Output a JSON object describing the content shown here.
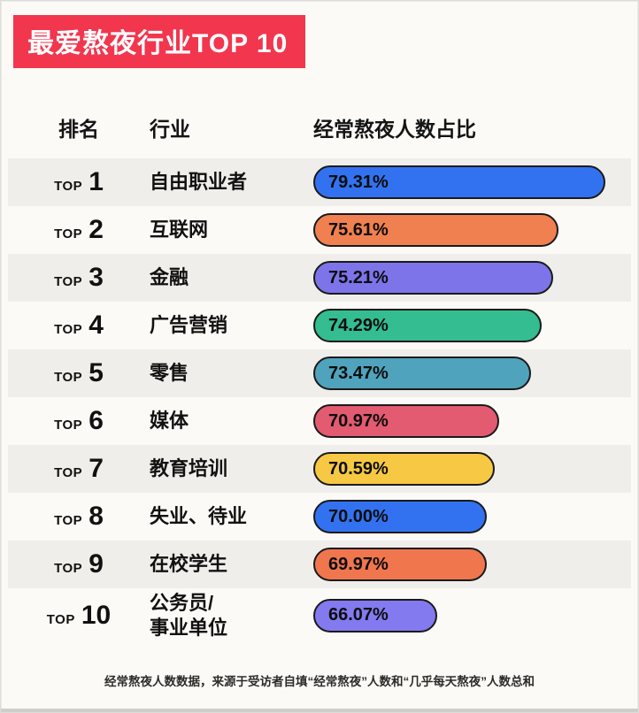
{
  "title": "最爱熬夜行业TOP 10",
  "columns": {
    "rank": "排名",
    "industry": "行业",
    "value": "经常熬夜人数占比"
  },
  "footer": "经常熬夜人数数据，来源于受访者自填“经常熬夜”人数和“几乎每天熬夜”人数总和",
  "rows": [
    {
      "rank_label": "TOP",
      "rank": "1",
      "industry": "自由职业者",
      "value": "79.31%"
    },
    {
      "rank_label": "TOP",
      "rank": "2",
      "industry": "互联网",
      "value": "75.61%"
    },
    {
      "rank_label": "TOP",
      "rank": "3",
      "industry": "金融",
      "value": "75.21%"
    },
    {
      "rank_label": "TOP",
      "rank": "4",
      "industry": "广告营销",
      "value": "74.29%"
    },
    {
      "rank_label": "TOP",
      "rank": "5",
      "industry": "零售",
      "value": "73.47%"
    },
    {
      "rank_label": "TOP",
      "rank": "6",
      "industry": "媒体",
      "value": "70.97%"
    },
    {
      "rank_label": "TOP",
      "rank": "7",
      "industry": "教育培训",
      "value": "70.59%"
    },
    {
      "rank_label": "TOP",
      "rank": "8",
      "industry": "失业、待业",
      "value": "70.00%"
    },
    {
      "rank_label": "TOP",
      "rank": "9",
      "industry": "在校学生",
      "value": "69.97%"
    },
    {
      "rank_label": "TOP",
      "rank": "10",
      "industry": "公务员/\n事业单位",
      "value": "66.07%"
    }
  ],
  "chart_data": {
    "type": "bar",
    "orientation": "horizontal",
    "title": "最爱熬夜行业TOP 10",
    "xlabel": "经常熬夜人数占比",
    "ylabel": "行业",
    "unit": "%",
    "categories": [
      "自由职业者",
      "互联网",
      "金融",
      "广告营销",
      "零售",
      "媒体",
      "教育培训",
      "失业、待业",
      "在校学生",
      "公务员/事业单位"
    ],
    "values": [
      79.31,
      75.61,
      75.21,
      74.29,
      73.47,
      70.97,
      70.59,
      70.0,
      69.97,
      66.07
    ],
    "bar_colors": [
      "#3272f0",
      "#f0804f",
      "#7d74ea",
      "#33bd90",
      "#4fa3bd",
      "#e25b70",
      "#f7c844",
      "#3272f0",
      "#f0764e",
      "#837af0"
    ],
    "bar_outline_color": "#1a1a1a",
    "banner_color": "#f2364e",
    "stripe_color": "#efeeea",
    "xlim": [
      66,
      80
    ],
    "grid": false,
    "legend": false
  }
}
